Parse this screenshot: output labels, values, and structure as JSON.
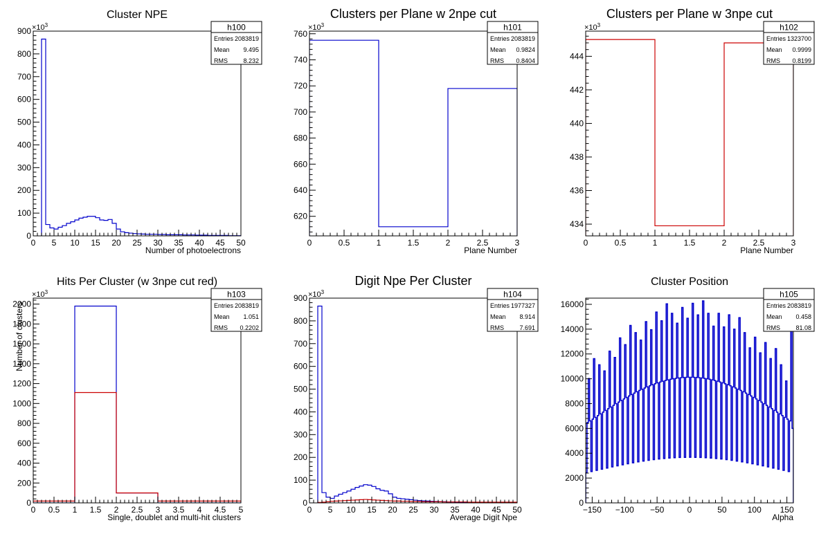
{
  "chart_data": [
    {
      "type": "histogram",
      "title": "Cluster NPE",
      "xlabel": "Number of photoelectrons",
      "ylabel": "",
      "exponent": "3",
      "xlim": [
        0,
        50
      ],
      "ylim": [
        0,
        900
      ],
      "xticks": [
        "0",
        "5",
        "10",
        "15",
        "20",
        "25",
        "30",
        "35",
        "40",
        "45",
        "50"
      ],
      "yticks": [
        "0",
        "100",
        "200",
        "300",
        "400",
        "500",
        "600",
        "700",
        "800",
        "900"
      ],
      "stats": {
        "name": "h100",
        "rows": [
          [
            "Entries",
            "2083819"
          ],
          [
            "Mean",
            "9.495"
          ],
          [
            "RMS",
            "8.232"
          ]
        ]
      },
      "series": [
        {
          "color": "#0000cc",
          "bin_width": 1,
          "x0": 2,
          "values": [
            865,
            50,
            35,
            30,
            38,
            45,
            55,
            62,
            70,
            78,
            82,
            86,
            86,
            80,
            70,
            68,
            72,
            55,
            30,
            18,
            14,
            12,
            10,
            9,
            8,
            7,
            7,
            7,
            6,
            6,
            5,
            5,
            5,
            5,
            4,
            4,
            4,
            3,
            3,
            3,
            2,
            2,
            2,
            2,
            2,
            1,
            1,
            1
          ]
        }
      ]
    },
    {
      "type": "histogram",
      "title": "Clusters per Plane w 2npe cut",
      "xlabel": "Plane Number",
      "ylabel": "",
      "exponent": "3",
      "xlim": [
        0,
        3
      ],
      "ylim": [
        605,
        762
      ],
      "xticks": [
        "0",
        "0.5",
        "1",
        "1.5",
        "2",
        "2.5",
        "3"
      ],
      "yticks": [
        "620",
        "640",
        "660",
        "680",
        "700",
        "720",
        "740",
        "760"
      ],
      "stats": {
        "name": "h101",
        "rows": [
          [
            "Entries",
            "2083819"
          ],
          [
            "Mean",
            "0.9824"
          ],
          [
            "RMS",
            "0.8404"
          ]
        ]
      },
      "series": [
        {
          "color": "#0000cc",
          "bin_width": 1,
          "x0": 0,
          "values": [
            755,
            612,
            718
          ]
        }
      ]
    },
    {
      "type": "histogram",
      "title": "Clusters per Plane w 3npe cut",
      "xlabel": "Plane Number",
      "ylabel": "",
      "exponent": "3",
      "xlim": [
        0,
        3
      ],
      "ylim": [
        433.3,
        445.5
      ],
      "xticks": [
        "0",
        "0.5",
        "1",
        "1.5",
        "2",
        "2.5",
        "3"
      ],
      "yticks": [
        "434",
        "436",
        "438",
        "440",
        "442",
        "444"
      ],
      "stats": {
        "name": "h102",
        "rows": [
          [
            "Entries",
            "1323700"
          ],
          [
            "Mean",
            "0.9999"
          ],
          [
            "RMS",
            "0.8199"
          ]
        ]
      },
      "series": [
        {
          "color": "#cc0000",
          "bin_width": 1,
          "x0": 0,
          "values": [
            445.0,
            433.9,
            444.8
          ]
        }
      ]
    },
    {
      "type": "histogram",
      "title": "Hits Per Cluster (w 3npe cut red)",
      "xlabel": "Single, doublet and multi-hit clusters",
      "ylabel": "Number of clusters",
      "exponent": "3",
      "xlim": [
        0,
        5
      ],
      "ylim": [
        0,
        2060
      ],
      "xticks": [
        "0",
        "0.5",
        "1",
        "1.5",
        "2",
        "2.5",
        "3",
        "3.5",
        "4",
        "4.5",
        "5"
      ],
      "yticks": [
        "0",
        "200",
        "400",
        "600",
        "800",
        "1000",
        "1200",
        "1400",
        "1600",
        "1800",
        "2000"
      ],
      "stats": {
        "name": "h103",
        "rows": [
          [
            "Entries",
            "2083819"
          ],
          [
            "Mean",
            "1.051"
          ],
          [
            "RMS",
            "0.2202"
          ]
        ]
      },
      "series": [
        {
          "color": "#0000cc",
          "bin_width": 1,
          "x0": 0,
          "values": [
            0,
            1980,
            100,
            0,
            0
          ]
        },
        {
          "color": "#cc0000",
          "bin_width": 1,
          "x0": 0,
          "values": [
            18,
            1110,
            100,
            18,
            18
          ]
        }
      ]
    },
    {
      "type": "histogram",
      "title": "Digit Npe Per Cluster",
      "xlabel": "Average Digit Npe",
      "ylabel": "",
      "exponent": "3",
      "xlim": [
        0,
        50
      ],
      "ylim": [
        0,
        900
      ],
      "xticks": [
        "0",
        "5",
        "10",
        "15",
        "20",
        "25",
        "30",
        "35",
        "40",
        "45",
        "50"
      ],
      "yticks": [
        "0",
        "100",
        "200",
        "300",
        "400",
        "500",
        "600",
        "700",
        "800",
        "900"
      ],
      "stats": {
        "name": "h104",
        "rows": [
          [
            "Entries",
            "1977327"
          ],
          [
            "Mean",
            "8.914"
          ],
          [
            "RMS",
            "7.691"
          ]
        ]
      },
      "series": [
        {
          "color": "#0000cc",
          "bin_width": 1,
          "x0": 2,
          "values": [
            865,
            45,
            25,
            20,
            30,
            38,
            45,
            52,
            60,
            68,
            74,
            80,
            78,
            72,
            62,
            55,
            52,
            40,
            25,
            20,
            18,
            16,
            14,
            12,
            10,
            9,
            8,
            7,
            6,
            5,
            5,
            4,
            4,
            3,
            3,
            3,
            2,
            2,
            2,
            2,
            1,
            1,
            1,
            1,
            1,
            1,
            1,
            1
          ]
        },
        {
          "color": "#cc0000",
          "bin_width": 1,
          "x0": 2,
          "values": [
            2,
            3,
            5,
            7,
            8,
            9,
            10,
            11,
            12,
            13,
            14,
            15,
            14,
            13,
            12,
            11,
            10,
            9,
            8,
            8,
            7,
            7,
            6,
            6,
            6,
            5,
            5,
            5,
            5,
            5,
            4,
            4,
            4,
            4,
            4,
            4,
            3,
            3,
            3,
            3,
            3,
            3,
            3,
            3,
            3,
            3,
            3,
            3
          ]
        }
      ]
    },
    {
      "type": "histogram",
      "title": "Cluster Position",
      "xlabel": "Alpha",
      "ylabel": "",
      "exponent": "",
      "xlim": [
        -160,
        160
      ],
      "ylim": [
        0,
        16500
      ],
      "xticks": [
        "−150",
        "−100",
        "−50",
        "0",
        "50",
        "100",
        "150"
      ],
      "xtick_values": [
        -150,
        -100,
        -50,
        0,
        50,
        100,
        150
      ],
      "yticks": [
        "0",
        "2000",
        "4000",
        "6000",
        "8000",
        "10000",
        "12000",
        "14000",
        "16000"
      ],
      "stats": {
        "name": "h105",
        "rows": [
          [
            "Entries",
            "2083819"
          ],
          [
            "Mean",
            "0.458"
          ],
          [
            "RMS",
            "81.08"
          ]
        ]
      },
      "series": [
        {
          "color": "#0000cc",
          "bin_width": 2,
          "x0": -160,
          "values": []
        }
      ]
    }
  ]
}
